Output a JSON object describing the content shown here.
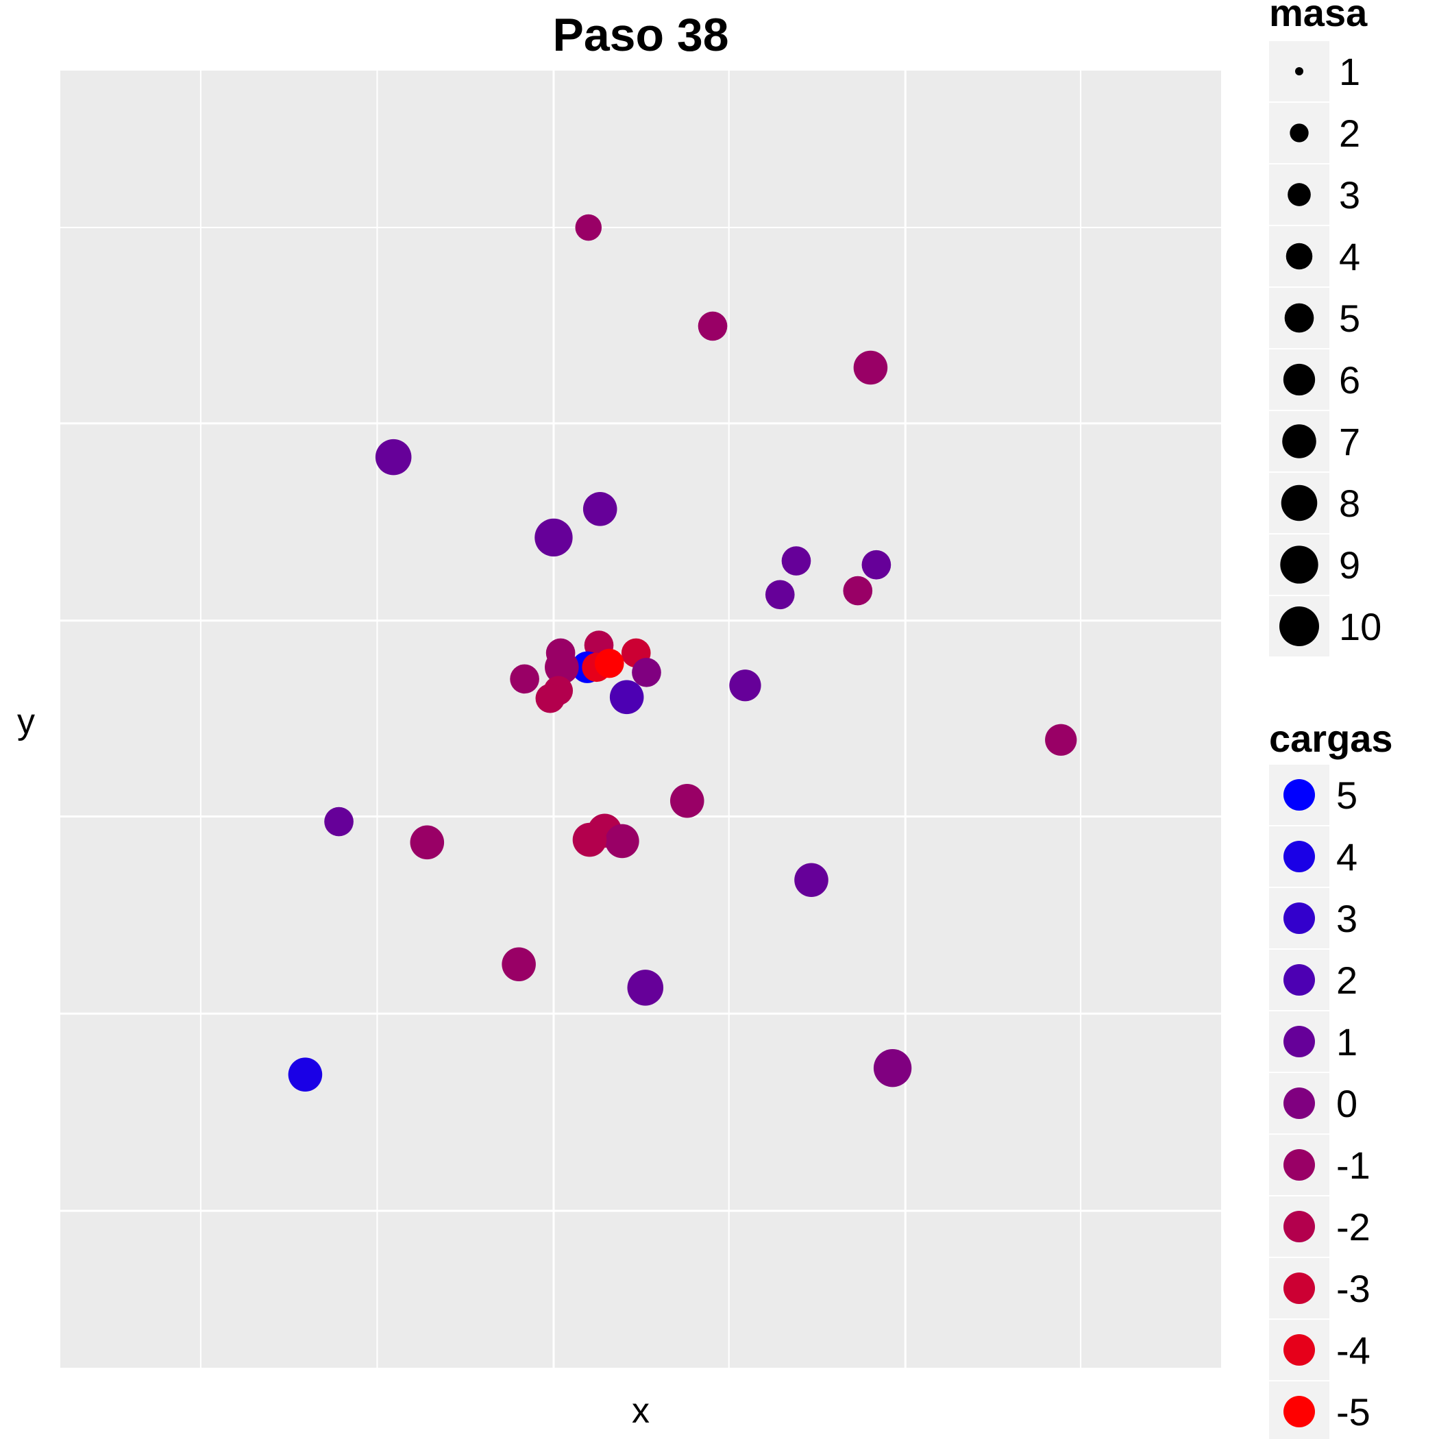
{
  "chart_data": {
    "type": "scatter",
    "title": "Paso 38",
    "xlabel": "x",
    "ylabel": "y",
    "xlim": [
      0,
      1
    ],
    "ylim": [
      0,
      1
    ],
    "grid": true,
    "legend_position": "right",
    "size_legend": {
      "title": "masa",
      "values": [
        "1",
        "2",
        "3",
        "4",
        "5",
        "6",
        "7",
        "8",
        "9",
        "10"
      ]
    },
    "color_legend": {
      "title": "cargas",
      "values": [
        "5",
        "4",
        "3",
        "2",
        "1",
        "0",
        "-1",
        "-2",
        "-3",
        "-4",
        "-5"
      ],
      "colors": [
        "#0000FF",
        "#1A00E6",
        "#3300CC",
        "#4D00B3",
        "#660099",
        "#800080",
        "#990066",
        "#B3004D",
        "#CC0033",
        "#E6001A",
        "#FF0000"
      ]
    },
    "points": [
      {
        "x": 0.455,
        "y": 0.879,
        "carga": -1,
        "masa": 4
      },
      {
        "x": 0.562,
        "y": 0.803,
        "carga": -1,
        "masa": 5
      },
      {
        "x": 0.698,
        "y": 0.771,
        "carga": -1,
        "masa": 7
      },
      {
        "x": 0.287,
        "y": 0.702,
        "carga": 1,
        "masa": 8
      },
      {
        "x": 0.465,
        "y": 0.662,
        "carga": 1,
        "masa": 7
      },
      {
        "x": 0.425,
        "y": 0.64,
        "carga": 1,
        "masa": 9
      },
      {
        "x": 0.634,
        "y": 0.622,
        "carga": 1,
        "masa": 5
      },
      {
        "x": 0.703,
        "y": 0.619,
        "carga": 1,
        "masa": 5
      },
      {
        "x": 0.62,
        "y": 0.596,
        "carga": 1,
        "masa": 5
      },
      {
        "x": 0.687,
        "y": 0.599,
        "carga": -1,
        "masa": 5
      },
      {
        "x": 0.431,
        "y": 0.551,
        "carga": -1,
        "masa": 5
      },
      {
        "x": 0.464,
        "y": 0.557,
        "carga": -2,
        "masa": 5
      },
      {
        "x": 0.496,
        "y": 0.551,
        "carga": -3,
        "masa": 5
      },
      {
        "x": 0.505,
        "y": 0.536,
        "carga": 0,
        "masa": 5
      },
      {
        "x": 0.454,
        "y": 0.54,
        "carga": 5,
        "masa": 6
      },
      {
        "x": 0.432,
        "y": 0.54,
        "carga": -1,
        "masa": 7
      },
      {
        "x": 0.462,
        "y": 0.54,
        "carga": -4,
        "masa": 5
      },
      {
        "x": 0.473,
        "y": 0.543,
        "carga": -5,
        "masa": 5
      },
      {
        "x": 0.4,
        "y": 0.531,
        "carga": -1,
        "masa": 5
      },
      {
        "x": 0.429,
        "y": 0.522,
        "carga": -2,
        "masa": 5
      },
      {
        "x": 0.488,
        "y": 0.517,
        "carga": 2,
        "masa": 7
      },
      {
        "x": 0.59,
        "y": 0.526,
        "carga": 1,
        "masa": 6
      },
      {
        "x": 0.422,
        "y": 0.516,
        "carga": -2,
        "masa": 5
      },
      {
        "x": 0.862,
        "y": 0.484,
        "carga": -1,
        "masa": 6
      },
      {
        "x": 0.54,
        "y": 0.437,
        "carga": -1,
        "masa": 7
      },
      {
        "x": 0.24,
        "y": 0.421,
        "carga": 1,
        "masa": 5
      },
      {
        "x": 0.316,
        "y": 0.405,
        "carga": -1,
        "masa": 7
      },
      {
        "x": 0.469,
        "y": 0.414,
        "carga": -2,
        "masa": 7
      },
      {
        "x": 0.484,
        "y": 0.406,
        "carga": -1,
        "masa": 7
      },
      {
        "x": 0.456,
        "y": 0.407,
        "carga": -2,
        "masa": 7
      },
      {
        "x": 0.647,
        "y": 0.376,
        "carga": 1,
        "masa": 7
      },
      {
        "x": 0.395,
        "y": 0.311,
        "carga": -1,
        "masa": 7
      },
      {
        "x": 0.504,
        "y": 0.293,
        "carga": 1,
        "masa": 8
      },
      {
        "x": 0.211,
        "y": 0.226,
        "carga": 4,
        "masa": 7
      },
      {
        "x": 0.717,
        "y": 0.231,
        "carga": 0,
        "masa": 9
      }
    ]
  }
}
